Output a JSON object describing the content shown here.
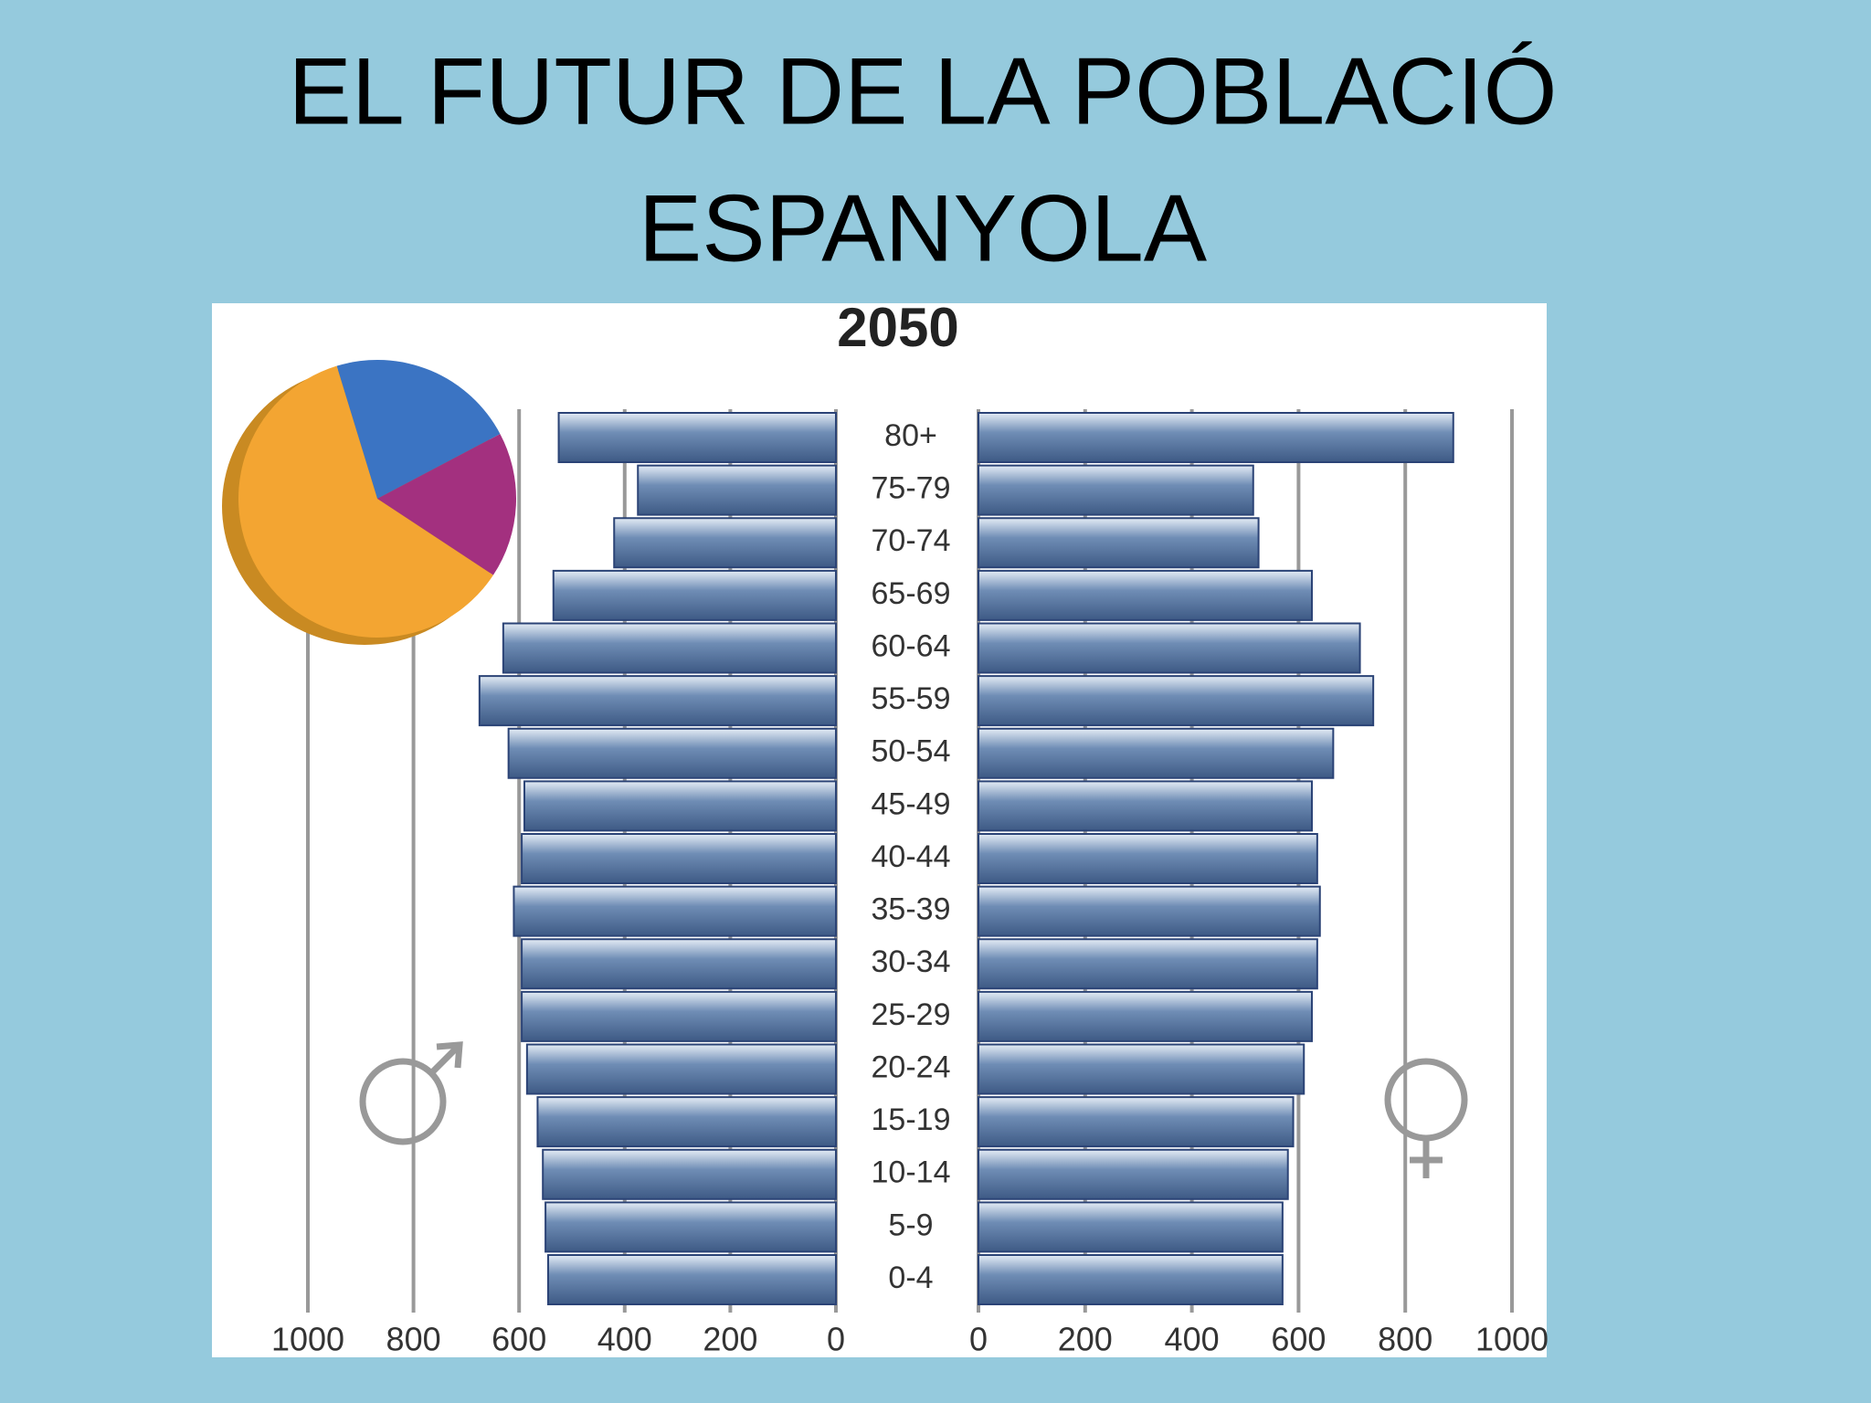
{
  "title_lines": [
    "EL FUTUR DE LA POBLACIÓ",
    "ESPANYOLA"
  ],
  "chart_data": [
    {
      "type": "pyramid",
      "title": "2050",
      "categories": [
        "80+",
        "75-79",
        "70-74",
        "65-69",
        "60-64",
        "55-59",
        "50-54",
        "45-49",
        "40-44",
        "35-39",
        "30-34",
        "25-29",
        "20-24",
        "15-19",
        "10-14",
        "5-9",
        "0-4"
      ],
      "series": [
        {
          "side": "left",
          "color": "#6f8db5",
          "values": [
            525,
            375,
            420,
            535,
            630,
            675,
            620,
            590,
            595,
            610,
            595,
            595,
            585,
            565,
            555,
            550,
            545
          ]
        },
        {
          "side": "right",
          "color": "#6f8db5",
          "values": [
            890,
            515,
            525,
            625,
            715,
            740,
            665,
            625,
            635,
            640,
            635,
            625,
            610,
            590,
            580,
            570,
            570
          ]
        }
      ],
      "xlim": [
        0,
        1000
      ],
      "xticks": [
        0,
        200,
        400,
        600,
        800,
        1000
      ],
      "grid": true
    },
    {
      "type": "pie",
      "values": [
        22,
        17,
        61
      ],
      "colors": [
        "#3b74c3",
        "#a3307f",
        "#f3a532"
      ]
    }
  ]
}
